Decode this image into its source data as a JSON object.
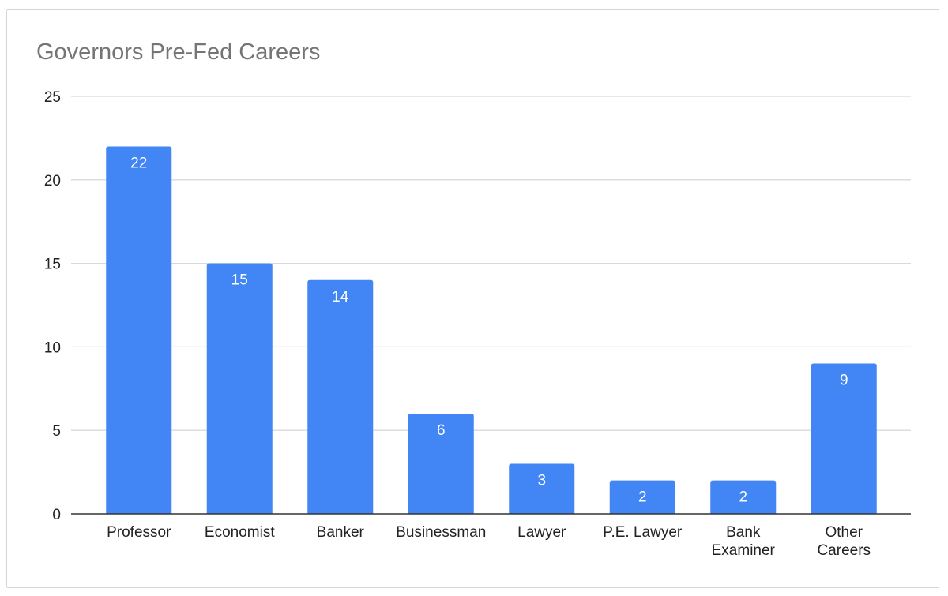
{
  "chart_data": {
    "type": "bar",
    "title": "Governors Pre-Fed Careers",
    "xlabel": "",
    "ylabel": "",
    "categories": [
      [
        "Professor"
      ],
      [
        "Economist"
      ],
      [
        "Banker"
      ],
      [
        "Businessman"
      ],
      [
        "Lawyer"
      ],
      [
        "P.E. Lawyer"
      ],
      [
        "Bank",
        "Examiner"
      ],
      [
        "Other",
        "Careers"
      ]
    ],
    "values": [
      22,
      15,
      14,
      6,
      3,
      2,
      2,
      9
    ],
    "ylim": [
      0,
      25
    ],
    "yticks": [
      0,
      5,
      10,
      15,
      20,
      25
    ],
    "grid": true,
    "legend": "none",
    "data_labels": true,
    "colors": {
      "bar": "#4285f4",
      "grid": "#d9d9d9",
      "axis": "#333333",
      "title": "#757575"
    }
  }
}
